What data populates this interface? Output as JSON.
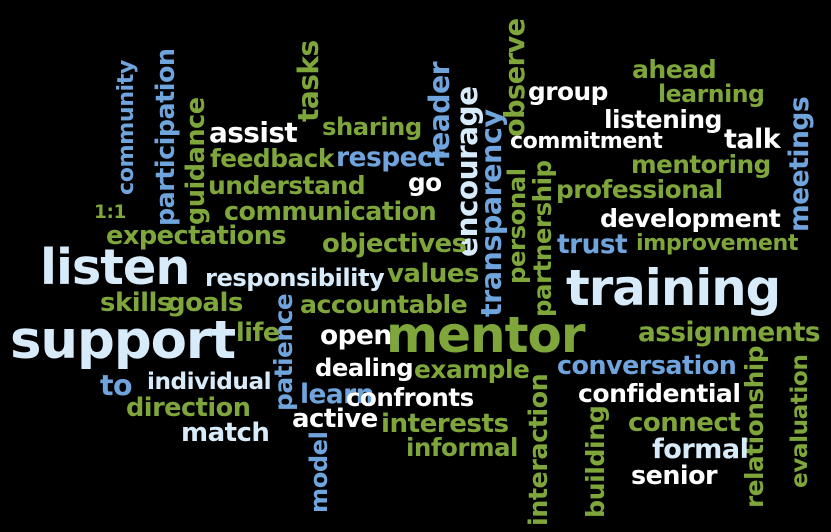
{
  "word_cloud": {
    "background": "#000000",
    "palette": {
      "green": "#7ea63a",
      "blue": "#6fa4dc",
      "light": "#d8ebfa",
      "white": "#ffffff"
    },
    "words": [
      {
        "text": "community",
        "color": "blue",
        "orientation": "vertical"
      },
      {
        "text": "participation",
        "color": "blue",
        "orientation": "vertical"
      },
      {
        "text": "guidance",
        "color": "green",
        "orientation": "vertical"
      },
      {
        "text": "tasks",
        "color": "green",
        "orientation": "vertical"
      },
      {
        "text": "assist",
        "color": "white",
        "orientation": "horizontal"
      },
      {
        "text": "sharing",
        "color": "green",
        "orientation": "horizontal"
      },
      {
        "text": "leader",
        "color": "blue",
        "orientation": "vertical"
      },
      {
        "text": "encourage",
        "color": "light",
        "orientation": "vertical"
      },
      {
        "text": "transparency",
        "color": "blue",
        "orientation": "vertical"
      },
      {
        "text": "observe",
        "color": "green",
        "orientation": "vertical"
      },
      {
        "text": "group",
        "color": "white",
        "orientation": "horizontal"
      },
      {
        "text": "ahead",
        "color": "green",
        "orientation": "horizontal"
      },
      {
        "text": "learning",
        "color": "green",
        "orientation": "horizontal"
      },
      {
        "text": "listening",
        "color": "white",
        "orientation": "horizontal"
      },
      {
        "text": "talk",
        "color": "white",
        "orientation": "horizontal"
      },
      {
        "text": "meetings",
        "color": "blue",
        "orientation": "vertical"
      },
      {
        "text": "commitment",
        "color": "white",
        "orientation": "horizontal"
      },
      {
        "text": "feedback",
        "color": "green",
        "orientation": "horizontal"
      },
      {
        "text": "respect",
        "color": "blue",
        "orientation": "horizontal"
      },
      {
        "text": "understand",
        "color": "green",
        "orientation": "horizontal"
      },
      {
        "text": "go",
        "color": "white",
        "orientation": "horizontal"
      },
      {
        "text": "mentoring",
        "color": "green",
        "orientation": "horizontal"
      },
      {
        "text": "professional",
        "color": "green",
        "orientation": "horizontal"
      },
      {
        "text": "1:1",
        "color": "green",
        "orientation": "horizontal"
      },
      {
        "text": "communication",
        "color": "green",
        "orientation": "horizontal"
      },
      {
        "text": "personal",
        "color": "green",
        "orientation": "vertical"
      },
      {
        "text": "partnership",
        "color": "green",
        "orientation": "vertical"
      },
      {
        "text": "development",
        "color": "white",
        "orientation": "horizontal"
      },
      {
        "text": "expectations",
        "color": "green",
        "orientation": "horizontal"
      },
      {
        "text": "objectives",
        "color": "green",
        "orientation": "horizontal"
      },
      {
        "text": "trust",
        "color": "blue",
        "orientation": "horizontal"
      },
      {
        "text": "improvement",
        "color": "green",
        "orientation": "horizontal"
      },
      {
        "text": "listen",
        "color": "light",
        "orientation": "horizontal"
      },
      {
        "text": "responsibility",
        "color": "light",
        "orientation": "horizontal"
      },
      {
        "text": "values",
        "color": "green",
        "orientation": "horizontal"
      },
      {
        "text": "training",
        "color": "light",
        "orientation": "horizontal"
      },
      {
        "text": "skills",
        "color": "green",
        "orientation": "horizontal"
      },
      {
        "text": "goals",
        "color": "green",
        "orientation": "horizontal"
      },
      {
        "text": "patience",
        "color": "blue",
        "orientation": "vertical"
      },
      {
        "text": "accountable",
        "color": "green",
        "orientation": "horizontal"
      },
      {
        "text": "support",
        "color": "light",
        "orientation": "horizontal"
      },
      {
        "text": "life",
        "color": "green",
        "orientation": "horizontal"
      },
      {
        "text": "open",
        "color": "white",
        "orientation": "horizontal"
      },
      {
        "text": "mentor",
        "color": "green",
        "orientation": "horizontal"
      },
      {
        "text": "assignments",
        "color": "green",
        "orientation": "horizontal"
      },
      {
        "text": "to",
        "color": "blue",
        "orientation": "horizontal"
      },
      {
        "text": "individual",
        "color": "light",
        "orientation": "horizontal"
      },
      {
        "text": "dealing",
        "color": "white",
        "orientation": "horizontal"
      },
      {
        "text": "example",
        "color": "green",
        "orientation": "horizontal"
      },
      {
        "text": "interaction",
        "color": "green",
        "orientation": "vertical"
      },
      {
        "text": "conversation",
        "color": "blue",
        "orientation": "horizontal"
      },
      {
        "text": "relationship",
        "color": "green",
        "orientation": "vertical"
      },
      {
        "text": "direction",
        "color": "green",
        "orientation": "horizontal"
      },
      {
        "text": "learn",
        "color": "blue",
        "orientation": "horizontal"
      },
      {
        "text": "confronts",
        "color": "white",
        "orientation": "horizontal"
      },
      {
        "text": "confidential",
        "color": "white",
        "orientation": "horizontal"
      },
      {
        "text": "evaluation",
        "color": "green",
        "orientation": "vertical"
      },
      {
        "text": "active",
        "color": "white",
        "orientation": "horizontal"
      },
      {
        "text": "interests",
        "color": "green",
        "orientation": "horizontal"
      },
      {
        "text": "connect",
        "color": "green",
        "orientation": "horizontal"
      },
      {
        "text": "match",
        "color": "light",
        "orientation": "horizontal"
      },
      {
        "text": "model",
        "color": "blue",
        "orientation": "vertical"
      },
      {
        "text": "building",
        "color": "green",
        "orientation": "vertical"
      },
      {
        "text": "formal",
        "color": "light",
        "orientation": "horizontal"
      },
      {
        "text": "informal",
        "color": "green",
        "orientation": "horizontal"
      },
      {
        "text": "senior",
        "color": "white",
        "orientation": "horizontal"
      }
    ]
  }
}
